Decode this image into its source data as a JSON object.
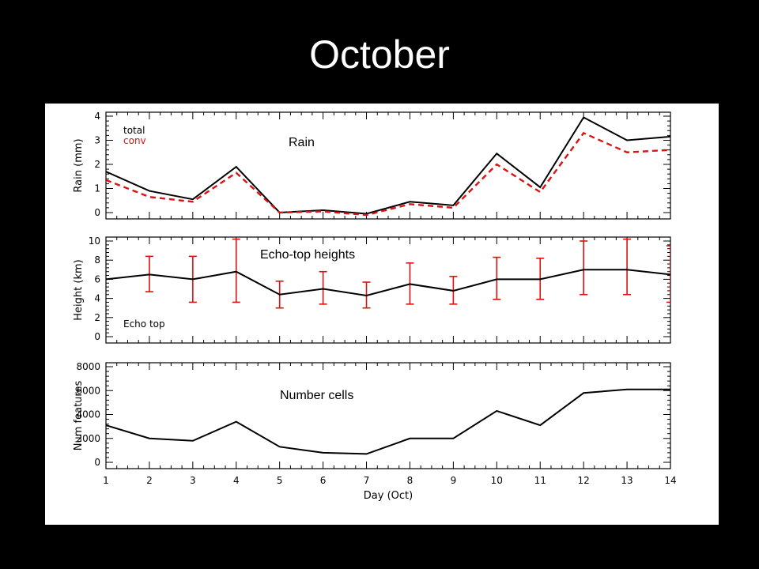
{
  "slide": {
    "title": "October"
  },
  "colors": {
    "background": "#000000",
    "panel": "#ffffff",
    "total": "#000000",
    "conv": "#dd1111"
  },
  "chart_data": [
    {
      "type": "line",
      "annotation": "Rain",
      "ylabel": "Rain (mm)",
      "xlabel": "",
      "x": [
        1,
        2,
        3,
        4,
        5,
        6,
        7,
        8,
        9,
        10,
        11,
        12,
        13,
        14
      ],
      "xlim": [
        1,
        14
      ],
      "ylim": [
        0,
        4
      ],
      "yticks": [
        0,
        1,
        2,
        3,
        4
      ],
      "legend_position": "top-left",
      "series": [
        {
          "name": "total",
          "style": "solid",
          "color": "#000000",
          "values": [
            1.7,
            0.9,
            0.55,
            1.9,
            0.0,
            0.1,
            -0.05,
            0.45,
            0.3,
            2.45,
            1.05,
            3.95,
            3.0,
            3.15
          ]
        },
        {
          "name": "conv",
          "style": "dashed",
          "color": "#dd1111",
          "values": [
            1.35,
            0.65,
            0.45,
            1.65,
            0.0,
            0.05,
            -0.1,
            0.35,
            0.2,
            2.0,
            0.85,
            3.3,
            2.5,
            2.6
          ]
        }
      ]
    },
    {
      "type": "line",
      "annotation": "Echo-top heights",
      "ylabel": "Height (km)",
      "xlabel": "",
      "x": [
        1,
        2,
        3,
        4,
        5,
        6,
        7,
        8,
        9,
        10,
        11,
        12,
        13,
        14
      ],
      "xlim": [
        1,
        14
      ],
      "ylim": [
        0,
        10
      ],
      "yticks": [
        0,
        2,
        4,
        6,
        8,
        10
      ],
      "legend_text": "Echo top",
      "legend_position": "bottom-left",
      "series": [
        {
          "style": "solid",
          "color": "#000000",
          "values": [
            6.0,
            6.5,
            6.0,
            6.8,
            4.4,
            5.0,
            4.3,
            5.5,
            4.8,
            6.0,
            6.0,
            7.0,
            7.0,
            6.5
          ],
          "error_low": [
            null,
            4.7,
            3.6,
            3.6,
            3.0,
            3.4,
            3.0,
            3.4,
            3.4,
            3.9,
            3.9,
            4.4,
            4.4,
            3.6
          ],
          "error_high": [
            null,
            8.4,
            8.4,
            10.2,
            5.8,
            6.8,
            5.7,
            7.7,
            6.3,
            8.3,
            8.2,
            10.0,
            10.2,
            9.5
          ]
        }
      ]
    },
    {
      "type": "line",
      "annotation": "Number cells",
      "ylabel": "Num features",
      "xlabel": "Day (Oct)",
      "x": [
        1,
        2,
        3,
        4,
        5,
        6,
        7,
        8,
        9,
        10,
        11,
        12,
        13,
        14
      ],
      "xticks": [
        1,
        2,
        3,
        4,
        5,
        6,
        7,
        8,
        9,
        10,
        11,
        12,
        13,
        14
      ],
      "xlim": [
        1,
        14
      ],
      "ylim": [
        0,
        8000
      ],
      "yticks": [
        0,
        2000,
        4000,
        6000,
        8000
      ],
      "series": [
        {
          "style": "solid",
          "color": "#000000",
          "values": [
            3100,
            2000,
            1800,
            3400,
            1300,
            800,
            700,
            2000,
            2000,
            4300,
            3100,
            5800,
            6100,
            6100
          ]
        }
      ]
    }
  ]
}
